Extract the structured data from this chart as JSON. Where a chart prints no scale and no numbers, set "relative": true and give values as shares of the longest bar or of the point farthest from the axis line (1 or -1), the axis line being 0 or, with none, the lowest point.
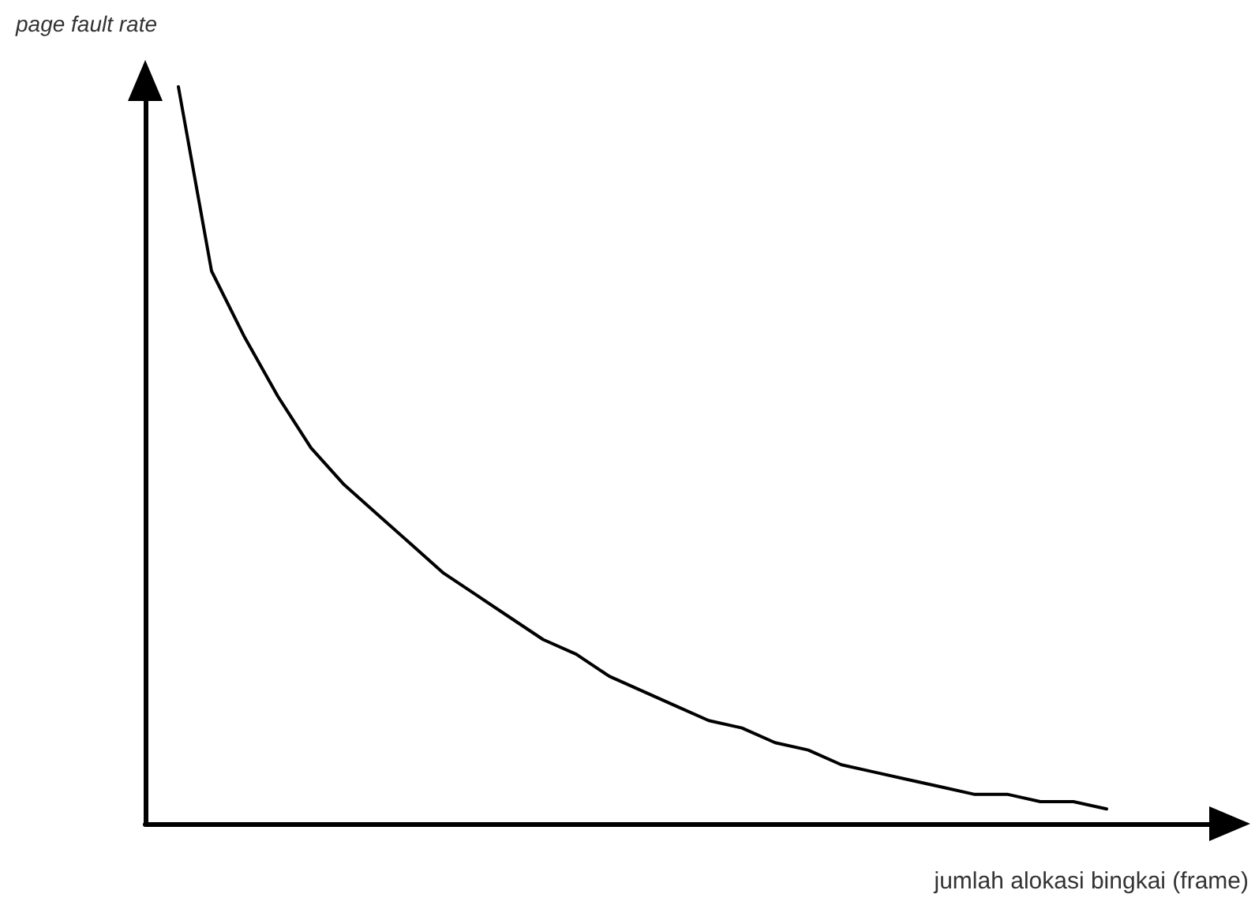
{
  "chart_data": {
    "type": "line",
    "relative": true,
    "ylabel": "page fault rate",
    "xlabel": "jumlah alokasi bingkai (frame)",
    "categories": [
      null,
      null,
      null,
      null,
      null,
      null,
      null,
      null,
      null,
      null,
      null,
      null,
      null,
      null,
      null,
      null,
      null,
      null,
      null,
      null,
      null,
      null,
      null,
      null,
      null,
      null,
      null,
      null,
      null,
      null,
      null,
      null,
      null,
      null
    ],
    "series": [
      {
        "color": "#000000",
        "values": [
          null,
          1,
          0.75,
          0.66,
          0.58,
          0.51,
          0.46,
          0.42,
          0.38,
          0.34,
          0.31,
          0.28,
          0.25,
          0.23,
          0.2,
          0.18,
          0.16,
          0.14,
          0.13,
          0.11,
          0.1,
          0.08,
          0.07,
          0.06,
          0.05,
          0.04,
          0.04,
          0.03,
          0.03,
          0.02,
          null,
          null,
          null,
          null
        ]
      }
    ],
    "marker": "none",
    "line_style": "solid"
  }
}
